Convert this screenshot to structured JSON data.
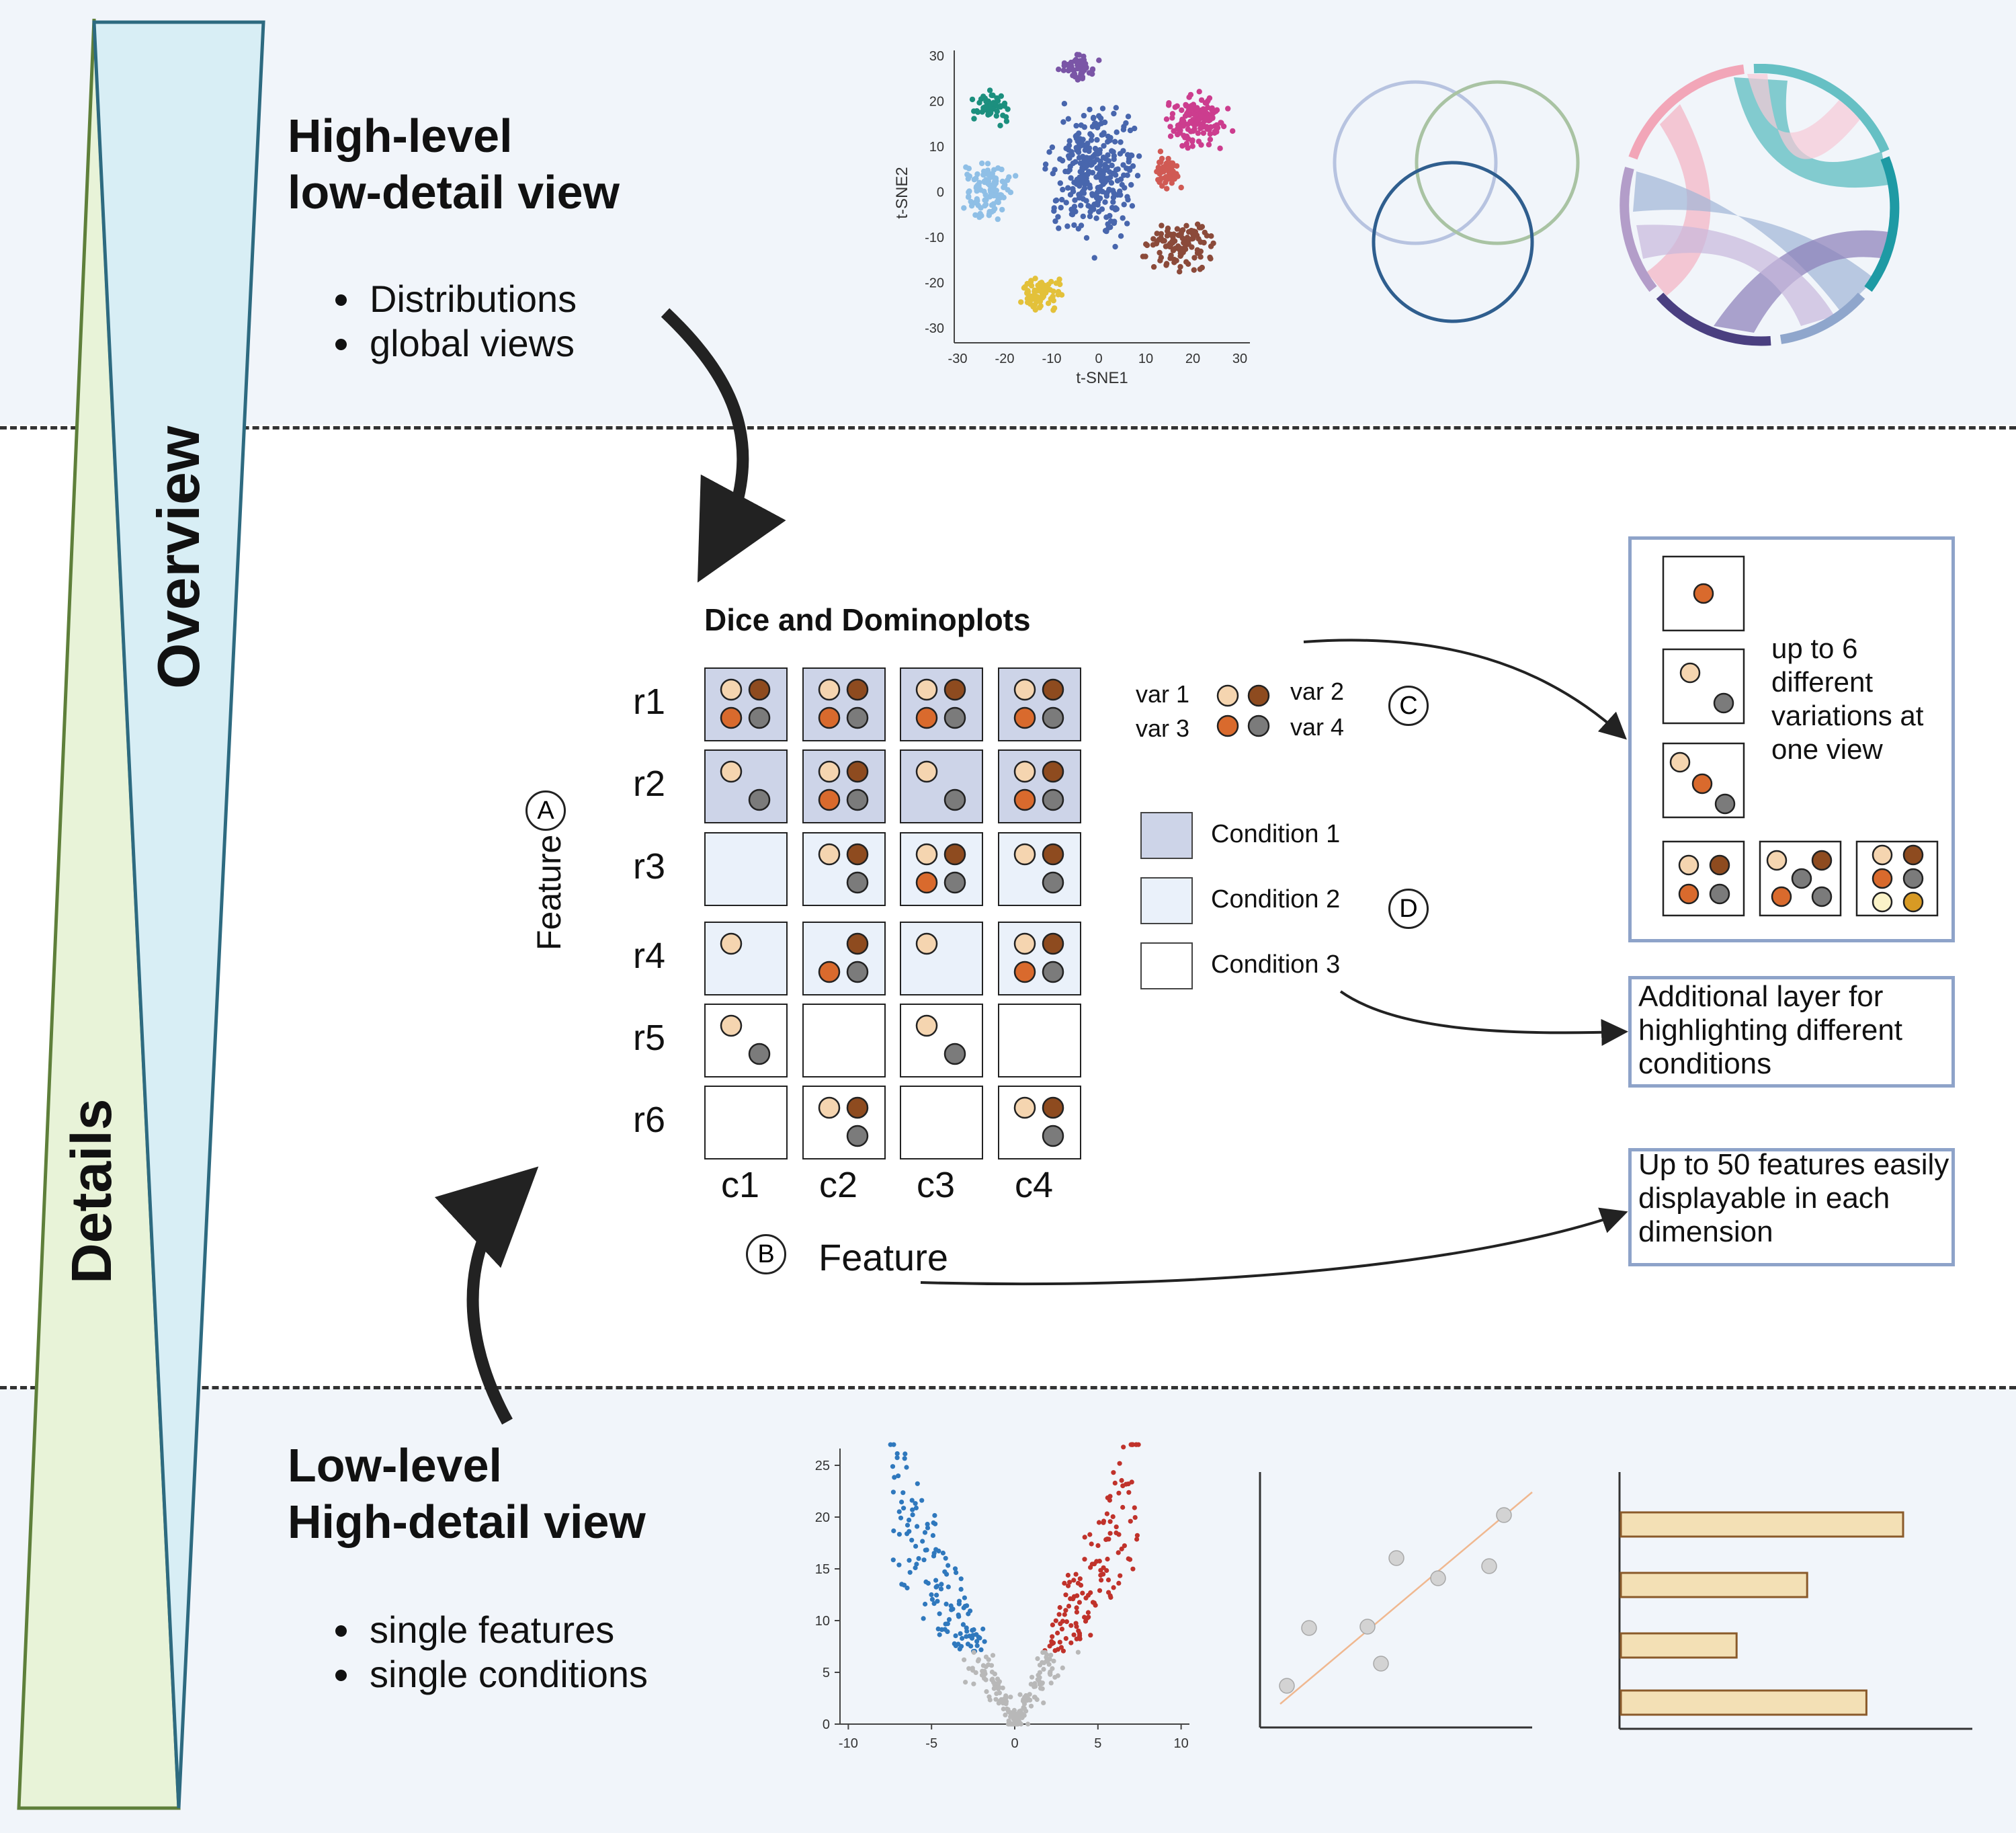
{
  "pyramid": {
    "overview_label": "Overview",
    "details_label": "Details"
  },
  "top": {
    "heading_line1": "High-level",
    "heading_line2": "low-detail view",
    "bullets": [
      "Distributions",
      "global views"
    ]
  },
  "bottom": {
    "heading_line1": "Low-level",
    "heading_line2": "High-detail view",
    "bullets": [
      "single features",
      "single conditions"
    ]
  },
  "tsne": {
    "xlabel": "t-SNE1",
    "ylabel": "t-SNE2",
    "x_ticks": [
      "-30",
      "-20",
      "-10",
      "0",
      "10",
      "20",
      "30"
    ],
    "y_ticks": [
      "30",
      "20",
      "10",
      "0",
      "-10",
      "-20",
      "-30"
    ],
    "cluster_colors": [
      "#1c8f7e",
      "#8fbfe6",
      "#4866ad",
      "#7a55a6",
      "#cc3d8e",
      "#d05a54",
      "#8b4a3a",
      "#e3c13a"
    ]
  },
  "middle": {
    "title": "Dice and Dominoplots",
    "row_labels": [
      "r1",
      "r2",
      "r3",
      "r4",
      "r5",
      "r6"
    ],
    "col_labels": [
      "c1",
      "c2",
      "c3",
      "c4"
    ],
    "axis_a_label": "Feature",
    "axis_b_label": "Feature",
    "marker_a": "A",
    "marker_b": "B",
    "marker_c": "C",
    "marker_d": "D",
    "var_labels": [
      "var 1",
      "var 2",
      "var 3",
      "var 4"
    ],
    "var_colors": [
      "#f5d5b0",
      "#8e4b1f",
      "#d96a2d",
      "#7b7b7b"
    ],
    "conditions": [
      {
        "label": "Condition 1",
        "color": "#cdd4e8"
      },
      {
        "label": "Condition 2",
        "color": "#eaf1fa"
      },
      {
        "label": "Condition 3",
        "color": "#ffffff"
      }
    ],
    "grid": [
      [
        {
          "c": 1,
          "v": [
            1,
            2,
            3,
            4
          ]
        },
        {
          "c": 1,
          "v": [
            1,
            2,
            3,
            4
          ]
        },
        {
          "c": 1,
          "v": [
            1,
            2,
            3,
            4
          ]
        },
        {
          "c": 1,
          "v": [
            1,
            2,
            3,
            4
          ]
        }
      ],
      [
        {
          "c": 1,
          "v": [
            1,
            4
          ]
        },
        {
          "c": 1,
          "v": [
            1,
            2,
            3,
            4
          ]
        },
        {
          "c": 1,
          "v": [
            1,
            4
          ]
        },
        {
          "c": 1,
          "v": [
            1,
            2,
            3,
            4
          ]
        }
      ],
      [
        {
          "c": 2,
          "v": []
        },
        {
          "c": 2,
          "v": [
            1,
            2,
            4
          ]
        },
        {
          "c": 2,
          "v": [
            1,
            2,
            3,
            4
          ]
        },
        {
          "c": 2,
          "v": [
            1,
            2,
            4
          ]
        }
      ],
      [
        {
          "c": 2,
          "v": [
            1
          ]
        },
        {
          "c": 2,
          "v": [
            2,
            3,
            4
          ]
        },
        {
          "c": 2,
          "v": [
            1
          ]
        },
        {
          "c": 2,
          "v": [
            1,
            2,
            3,
            4
          ]
        }
      ],
      [
        {
          "c": 3,
          "v": [
            1,
            4
          ]
        },
        {
          "c": 3,
          "v": []
        },
        {
          "c": 3,
          "v": [
            1,
            4
          ]
        },
        {
          "c": 3,
          "v": []
        }
      ],
      [
        {
          "c": 3,
          "v": []
        },
        {
          "c": 3,
          "v": [
            1,
            2,
            4
          ]
        },
        {
          "c": 3,
          "v": []
        },
        {
          "c": 3,
          "v": [
            1,
            2,
            4
          ]
        }
      ]
    ]
  },
  "right_panels": {
    "variations_text": [
      "up to 6",
      "different",
      "variations at",
      "one view"
    ],
    "conditions_text": [
      "Additional layer for",
      "highlighting different",
      "conditions"
    ],
    "features_text": [
      "Up to 50 features easily",
      "displayable in each",
      "dimension"
    ]
  },
  "volcano": {
    "x_ticks": [
      "-10",
      "-5",
      "0",
      "5",
      "10"
    ],
    "y_ticks": [
      "0",
      "5",
      "10",
      "15",
      "20",
      "25"
    ],
    "colors": {
      "down": "#2f78bd",
      "up": "#c0322b",
      "ns": "#b8b8b8"
    }
  },
  "regression": {
    "point_color": "#d3d3d3",
    "line_color": "#f0b890"
  },
  "barchart": {
    "values": [
      1.0,
      0.66,
      0.41,
      0.87
    ],
    "bar_color": "#f3e0b5"
  }
}
